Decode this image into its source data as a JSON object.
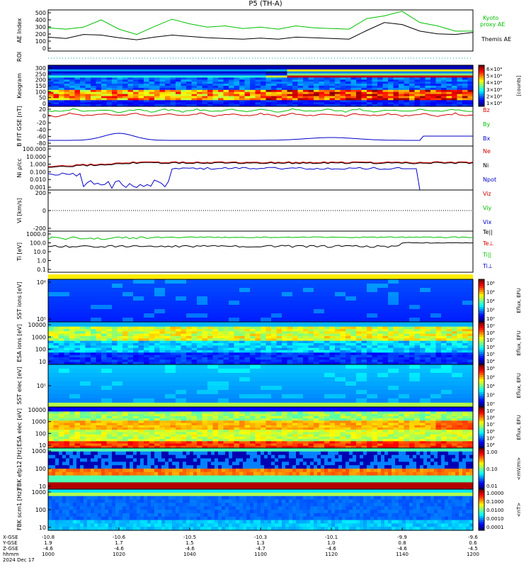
{
  "header": {
    "title": "P5 (TH-A)"
  },
  "x_axis": {
    "ticks": [
      "1000",
      "1020",
      "1040",
      "1100",
      "1120",
      "1140",
      "1200"
    ],
    "rows": [
      {
        "label": "X-GSE",
        "values": [
          "-10.8",
          "-10.6",
          "-10.5",
          "-10.3",
          "-10.1",
          "-9.9",
          "-9.6"
        ]
      },
      {
        "label": "Y-GSE",
        "values": [
          "1.9",
          "1.7",
          "1.5",
          "1.3",
          "1.0",
          "0.8",
          "0.6"
        ]
      },
      {
        "label": "Z-GSE",
        "values": [
          "-4.6",
          "-4.6",
          "-4.6",
          "-4.7",
          "-4.6",
          "-4.6",
          "-4.5"
        ]
      },
      {
        "label": "hhmm",
        "values": []
      },
      {
        "label": "2024 Dec 17",
        "values": []
      }
    ]
  },
  "colors": {
    "green": "#00c000",
    "red": "#d00000",
    "blue": "#0000c8",
    "black": "#000000",
    "yellow": "#ffee00"
  },
  "chart_data": [
    {
      "type": "line",
      "ylabel": "AE Index",
      "yticks": [
        "500",
        "400",
        "300",
        "200",
        "100",
        "0",
        "-100"
      ],
      "series": [
        {
          "name": "Kyoto proxy AE",
          "color": "#00c000"
        },
        {
          "name": "Themis AE",
          "color": "#000000"
        }
      ],
      "x": [
        0,
        5,
        10,
        15,
        20,
        25,
        30,
        35,
        40,
        45,
        50,
        55,
        60,
        65,
        70,
        75,
        80,
        85,
        90,
        95,
        100,
        105,
        110,
        115,
        120
      ],
      "ys": [
        [
          250,
          230,
          260,
          370,
          230,
          150,
          270,
          380,
          310,
          260,
          280,
          240,
          260,
          230,
          280,
          250,
          240,
          230,
          390,
          430,
          500,
          330,
          280,
          200,
          200
        ],
        [
          110,
          90,
          150,
          140,
          100,
          70,
          110,
          140,
          120,
          100,
          90,
          80,
          95,
          80,
          110,
          100,
          90,
          80,
          210,
          330,
          300,
          200,
          160,
          150,
          180
        ]
      ]
    },
    {
      "type": "heatmap",
      "ylabel": "ROI",
      "yticks": [],
      "note": "dotted line"
    },
    {
      "type": "heatmap",
      "ylabel": "Keogram",
      "yticks": [
        "300",
        "250",
        "200",
        "150",
        "100",
        "50",
        "0"
      ],
      "colorbar": {
        "label": "[counts]",
        "ticks": [
          "6×10⁴",
          "5×10⁴",
          "4×10⁴",
          "3×10⁴",
          "2×10⁴",
          "1×10⁴"
        ]
      }
    },
    {
      "type": "line",
      "ylabel": "B FIT GSE [nT]",
      "yticks": [
        "20",
        "0",
        "-20",
        "-40",
        "-60",
        "-80"
      ],
      "legend": [
        "Bz",
        "By",
        "Bx"
      ],
      "legend_colors": [
        "#d00000",
        "#00c000",
        "#0000c8"
      ]
    },
    {
      "type": "line",
      "ylabel": "Ni ρ/cc",
      "yticks": [
        "100.000",
        "10.000",
        "1.000",
        "0.100",
        "0.010",
        "0.001"
      ],
      "legend": [
        "Ne",
        "Ni",
        "Npot"
      ],
      "legend_colors": [
        "#d00000",
        "#000000",
        "#0000c8"
      ]
    },
    {
      "type": "line",
      "ylabel": "Vi [km/s]",
      "yticks": [
        "200",
        "0",
        "-200"
      ],
      "legend": [
        "Viz",
        "Viy",
        "Vix"
      ],
      "legend_colors": [
        "#d00000",
        "#00c000",
        "#0000c8"
      ]
    },
    {
      "type": "line",
      "ylabel": "Ti [eV]",
      "yticks": [
        "1000.0",
        "100.0",
        "10.0",
        "1.0",
        "0.1"
      ],
      "legend": [
        "Te||",
        "Te⊥",
        "Ti||",
        "Ti⊥"
      ],
      "legend_colors": [
        "#000000",
        "#d00000",
        "#00c000",
        "#0000c8"
      ]
    },
    {
      "type": "heatmap",
      "ylabel": "SST ions [eV]",
      "yticks": [
        "10⁶",
        "10⁵"
      ],
      "colorbar": {
        "label": "Eflux, EFU",
        "ticks": [
          "10⁸",
          "10⁶",
          "10⁴",
          "10²",
          "10⁰"
        ]
      }
    },
    {
      "type": "heatmap",
      "ylabel": "ESA ions [eV]",
      "yticks": [
        "10000",
        "1000",
        "100",
        "10"
      ],
      "colorbar": {
        "label": "Eflux, EFU",
        "ticks": [
          "10⁹",
          "10⁸",
          "10⁷",
          "10⁶",
          "10⁵",
          "10⁴"
        ]
      }
    },
    {
      "type": "heatmap",
      "ylabel": "SST elec [eV]",
      "yticks": [
        "10⁵"
      ],
      "colorbar": {
        "label": "Eflux, EFU",
        "ticks": [
          "10⁸",
          "10⁶",
          "10⁴",
          "10²",
          "10⁰"
        ]
      }
    },
    {
      "type": "heatmap",
      "ylabel": "ESA elec [eV]",
      "yticks": [
        "10000",
        "1000",
        "100",
        "10"
      ],
      "colorbar": {
        "label": "Eflux, EFU",
        "ticks": [
          "10⁹",
          "10⁸",
          "10⁷",
          "10⁶",
          "10⁵",
          "10⁴"
        ]
      }
    },
    {
      "type": "heatmap",
      "ylabel": "FBK efp12 [Hz]",
      "yticks": [
        "1000",
        "100",
        "10"
      ],
      "colorbar": {
        "label": "<mV/m>",
        "ticks": [
          "1.00",
          "0.10",
          "0.01"
        ]
      }
    },
    {
      "type": "heatmap",
      "ylabel": "FBK scm1 [Hz]",
      "yticks": [
        "1000",
        "100",
        "10"
      ],
      "colorbar": {
        "label": "<nT>",
        "ticks": [
          "1.0000",
          "0.1000",
          "0.0100",
          "0.0010",
          "0.0001"
        ]
      }
    }
  ]
}
